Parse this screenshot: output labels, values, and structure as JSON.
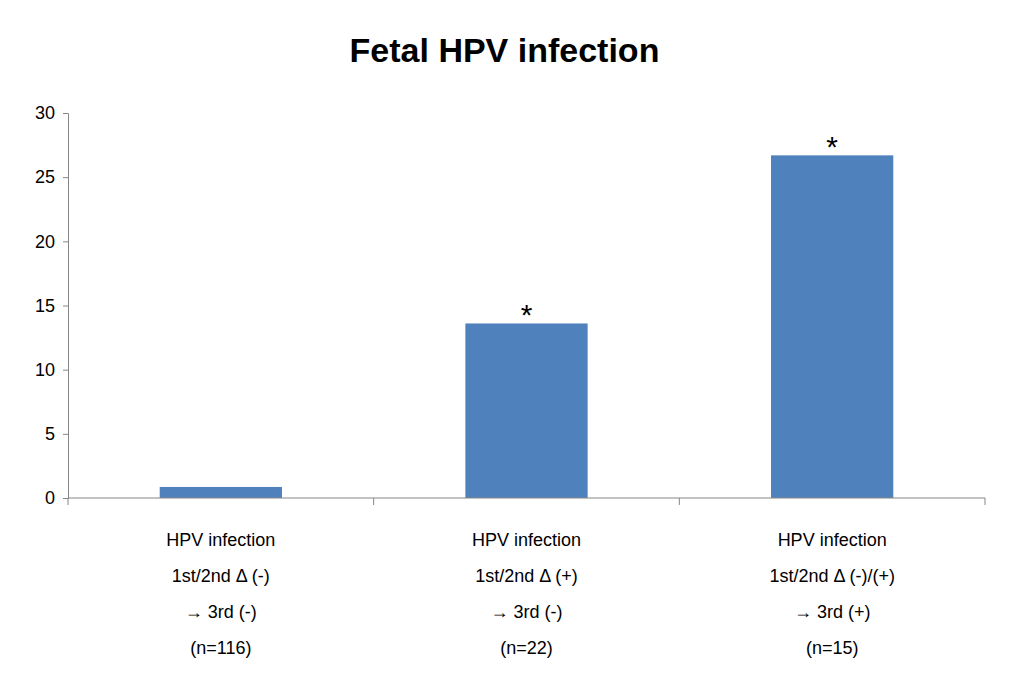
{
  "chart_data": {
    "type": "bar",
    "title": "Fetal HPV infection",
    "categories": [
      "HPV infection\n1st/2nd Δ (-)\n→ 3rd (-)\n(n=116)",
      "HPV infection\n1st/2nd Δ (+)\n→ 3rd (-)\n(n=22)",
      "HPV infection\n1st/2nd Δ (-)/(+)\n→ 3rd (+)\n(n=15)"
    ],
    "values": [
      0.86,
      13.6,
      26.7
    ],
    "color": "#4f81bd",
    "ylim": [
      0,
      30
    ],
    "yticks": [
      0,
      5,
      10,
      15,
      20,
      25,
      30
    ],
    "grid": false,
    "annotations": [
      {
        "text": "*",
        "index": 1
      },
      {
        "text": "*",
        "index": 2
      }
    ]
  }
}
